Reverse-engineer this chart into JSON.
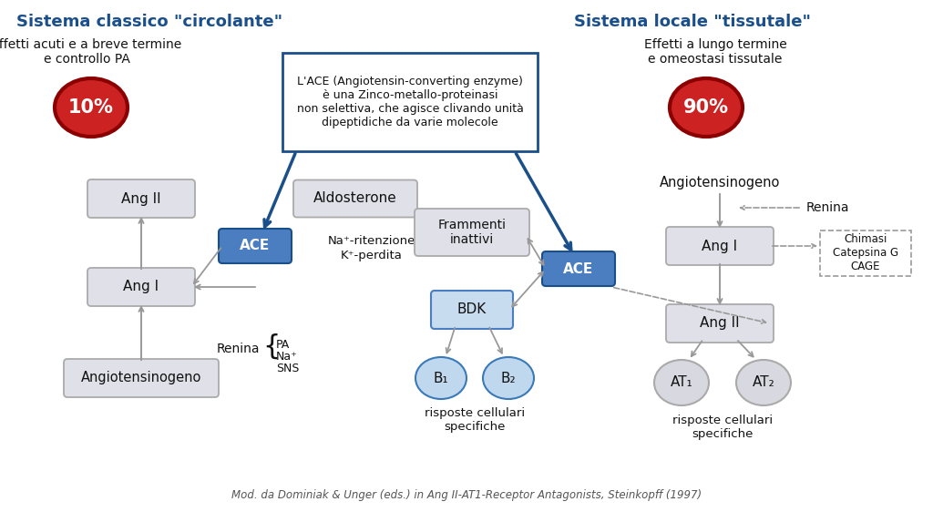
{
  "bg_color": "#FFFFFF",
  "title_left": "Sistema classico \"circolante\"",
  "title_right": "Sistema locale \"tissutale\"",
  "subtitle_left": "Effetti acuti e a breve termine\ne controllo PA",
  "subtitle_right": "Effetti a lungo termine\ne omeostasi tissutale",
  "pct_left": "10%",
  "pct_right": "90%",
  "ace_box_text": "L'ACE (Angiotensin-converting enzyme)\nè una Zinco-metallo-proteinasi\nnon selettiva, che agisce clivando unità\ndipeptidiche da varie molecole",
  "footer": "Mod. da Dominiak & Unger (eds.) in Ang II-AT1-Receptor Antagonists, Steinkopff (1997)",
  "blue_dark": "#1B4F8A",
  "blue_ace": "#4A7EC0",
  "red_circle": "#CC2222",
  "red_dark": "#8B0000",
  "gray_box_bg": "#E0E0E8",
  "gray_box_border": "#AAAAAA",
  "bdk_bg": "#C8DCF0",
  "bdk_border": "#4A7EC0",
  "b_circle_bg": "#C0D8EE",
  "b_circle_border": "#3A7AB8",
  "at_circle_bg": "#D8D8E0",
  "at_circle_border": "#AAAAAA",
  "text_dark": "#111111",
  "text_blue": "#1B4F8A",
  "arrow_gray": "#999999",
  "arrow_blue": "#1B4F8A"
}
